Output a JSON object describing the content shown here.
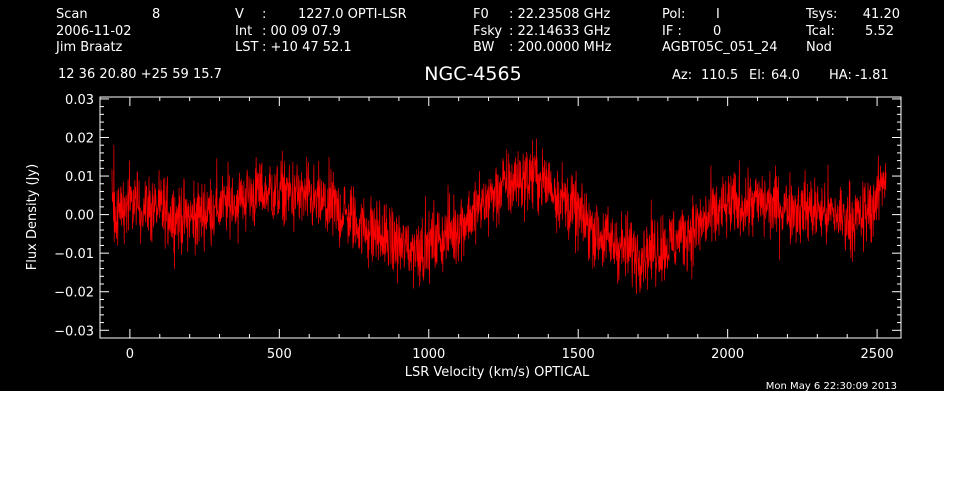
{
  "header": {
    "scan_label": "Scan",
    "scan_value": "8",
    "date": "2006-11-02",
    "observer": "Jim Braatz",
    "v_label": "V",
    "v_sep": ":",
    "v_value": "1227.0 OPTI-LSR",
    "int_label": "Int",
    "int_value": ": 00 09 07.9",
    "lst_label": "LST",
    "lst_value": ": +10 47 52.1",
    "f0_label": "F0",
    "f0_value": ": 22.23508 GHz",
    "fsky_label": "Fsky",
    "fsky_value": ": 22.14633 GHz",
    "bw_label": "BW",
    "bw_value": ": 200.0000 MHz",
    "pol_label": "Pol:",
    "pol_value": "I",
    "if_label": "IF :",
    "if_value": "0",
    "project": "AGBT05C_051_24",
    "tsys_label": "Tsys:",
    "tsys_value": "41.20",
    "tcal_label": "Tcal:",
    "tcal_value": "5.52",
    "mode": "Nod",
    "coords": "12 36 20.80  +25 59 15.7",
    "source": "NGC-4565",
    "az_label": "Az:",
    "az_value": "110.5",
    "el_label": "El:",
    "el_value": "64.0",
    "ha_label": "HA:",
    "ha_value": "-1.81",
    "timestamp": "Mon May  6 22:30:09 2013"
  },
  "chart_data": {
    "type": "line",
    "title": "NGC-4565",
    "xlabel": "LSR Velocity (km/s) OPTICAL",
    "ylabel": "Flux Density (Jy)",
    "xlim": [
      -100,
      2580
    ],
    "ylim": [
      -0.032,
      0.0305
    ],
    "x_ticks": [
      0,
      500,
      1000,
      1500,
      2000,
      2500
    ],
    "x_tick_labels": [
      "0",
      "500",
      "1000",
      "1500",
      "2000",
      "2500"
    ],
    "y_ticks": [
      -0.03,
      -0.02,
      -0.01,
      0.0,
      0.01,
      0.02,
      0.03
    ],
    "y_tick_labels": [
      "−0.03",
      "−0.02",
      "−0.01",
      "0.00",
      "0.01",
      "0.02",
      "0.03"
    ],
    "grid": false,
    "colors": {
      "background": "#000000",
      "axes": "#ffffff",
      "series": "#ff0000"
    },
    "series": [
      {
        "x": [
          -60,
          0,
          100,
          200,
          300,
          400,
          450,
          500,
          600,
          700,
          800,
          900,
          950,
          1000,
          1100,
          1200,
          1250,
          1300,
          1350,
          1400,
          1500,
          1600,
          1700,
          1800,
          1900,
          2000,
          2100,
          2200,
          2300,
          2400,
          2450,
          2500,
          2530
        ],
        "values": [
          0.0,
          0.003,
          0.001,
          -0.001,
          0.002,
          0.005,
          0.006,
          0.006,
          0.004,
          0.001,
          -0.004,
          -0.008,
          -0.009,
          -0.008,
          -0.003,
          0.004,
          0.007,
          0.009,
          0.01,
          0.008,
          0.0,
          -0.007,
          -0.01,
          -0.008,
          -0.003,
          0.002,
          0.003,
          0.002,
          0.001,
          -0.001,
          -0.001,
          0.004,
          0.012
        ],
        "noise_rms": 0.0045
      }
    ]
  }
}
